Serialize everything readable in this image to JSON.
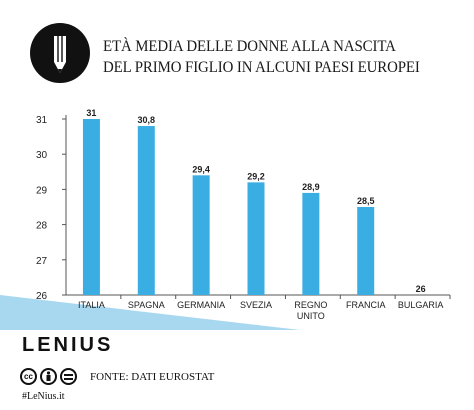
{
  "header": {
    "title_line1": "ETÀ MEDIA DELLE DONNE ALLA NASCITA",
    "title_line2": "DEL PRIMO FIGLIO IN ALCUNI PAESI EUROPEI",
    "logo_icon": "pencil-icon"
  },
  "footer": {
    "brand": "LENIUS",
    "source": "FONTE: DATI EUROSTAT",
    "handle": "#LeNius.it",
    "license_icons": [
      "cc-icon",
      "by-icon",
      "nd-icon"
    ]
  },
  "colors": {
    "bar": "#3aaee3",
    "background_triangle": "#a8d8f0",
    "accent": "#29a8e0"
  },
  "chart_data": {
    "type": "bar",
    "categories": [
      "ITALIA",
      "SPAGNA",
      "GERMANIA",
      "SVEZIA",
      "REGNO UNITO",
      "FRANCIA",
      "BULGARIA"
    ],
    "values": [
      31,
      30.8,
      29.4,
      29.2,
      28.9,
      28.5,
      26
    ],
    "value_labels": [
      "31",
      "30,8",
      "29,4",
      "29,2",
      "28,9",
      "28,5",
      "26"
    ],
    "ylim": [
      26,
      31
    ],
    "yticks": [
      "26",
      "27",
      "28",
      "29",
      "30",
      "31"
    ],
    "grid": false
  }
}
